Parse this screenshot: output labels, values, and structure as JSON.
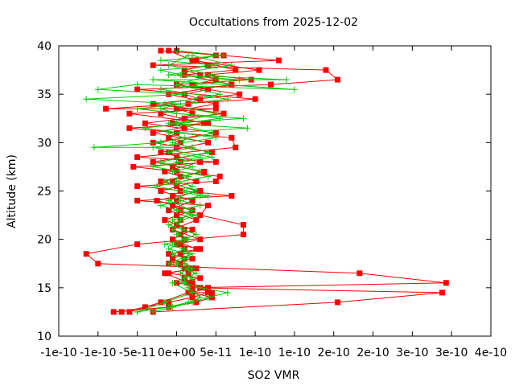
{
  "chart_data": {
    "type": "line",
    "title": "Occultations from 2025-12-02",
    "xlabel": "SO2 VMR",
    "ylabel": "Altitude (km)",
    "xlim": [
      -1.5e-10,
      4e-10
    ],
    "ylim": [
      10,
      40
    ],
    "x_tick_values": [
      -1.5e-10,
      -1e-10,
      -5e-11,
      0,
      5e-11,
      1e-10,
      1.5e-10,
      2e-10,
      2.5e-10,
      3e-10,
      3.5e-10,
      4e-10
    ],
    "x_tick_labels": [
      "-1e-10",
      "-1e-10",
      "-5e-11",
      "0e+00",
      "5e-11",
      "1e-10",
      "1e-10",
      "2e-10",
      "2e-10",
      "3e-10",
      "3e-10",
      "4e-10"
    ],
    "y_tick_values": [
      10,
      15,
      20,
      25,
      30,
      35,
      40
    ],
    "y_tick_labels": [
      "10",
      "15",
      "20",
      "25",
      "30",
      "35",
      "40"
    ],
    "grid": false,
    "legend": "none",
    "series": [
      {
        "marker": "square",
        "color": "#ff0000",
        "points": [
          [
            -7e-11,
            12.5
          ],
          [
            -4e-11,
            13
          ],
          [
            -1e-11,
            13.5
          ],
          [
            2e-11,
            14
          ],
          [
            4e-11,
            14.5
          ],
          [
            3e-11,
            15
          ],
          [
            2e-11,
            15.5
          ],
          [
            1e-11,
            16
          ],
          [
            1.5e-11,
            16.5
          ],
          [
            1e-11,
            17
          ],
          [
            5e-12,
            17.5
          ],
          [
            1e-11,
            18
          ],
          [
            5e-12,
            18.5
          ],
          [
            1e-11,
            19
          ],
          [
            5e-12,
            19.5
          ],
          [
            1e-11,
            20
          ],
          [
            5e-12,
            20.5
          ],
          [
            1e-11,
            21
          ],
          [
            0,
            21.5
          ],
          [
            5e-12,
            22
          ],
          [
            0,
            22.5
          ],
          [
            5e-12,
            23
          ],
          [
            -5e-12,
            23.5
          ],
          [
            0,
            24
          ],
          [
            -5e-12,
            24.5
          ],
          [
            5e-12,
            25
          ],
          [
            0,
            25.5
          ],
          [
            -5e-12,
            26
          ],
          [
            5e-12,
            26.5
          ],
          [
            0,
            27
          ],
          [
            -5e-12,
            27.5
          ],
          [
            5e-12,
            28
          ],
          [
            0,
            28.5
          ],
          [
            -1e-11,
            29
          ],
          [
            0,
            29.5
          ],
          [
            5e-12,
            30
          ],
          [
            -1e-11,
            30.5
          ],
          [
            0,
            31
          ],
          [
            1e-11,
            31.5
          ],
          [
            -5e-12,
            32
          ],
          [
            1e-11,
            32.5
          ],
          [
            2e-11,
            33
          ],
          [
            0,
            33.5
          ],
          [
            1.5e-11,
            34
          ],
          [
            3e-11,
            34.5
          ],
          [
            1e-11,
            35
          ],
          [
            4e-11,
            35.5
          ],
          [
            2e-11,
            36
          ],
          [
            5e-11,
            36.5
          ],
          [
            3e-11,
            37
          ],
          [
            1e-11,
            37.5
          ],
          [
            4e-11,
            38
          ],
          [
            2e-11,
            38.5
          ],
          [
            5e-11,
            39
          ],
          [
            0,
            39.5
          ]
        ]
      },
      {
        "marker": "square",
        "color": "#ff0000",
        "points": [
          [
            -3e-11,
            12.5
          ],
          [
            2.05e-10,
            13.5
          ],
          [
            3.38e-10,
            14.5
          ],
          [
            2e-11,
            15
          ],
          [
            3.43e-10,
            15.5
          ],
          [
            2.33e-10,
            16.5
          ],
          [
            -1e-10,
            17.5
          ],
          [
            -1.15e-10,
            18.5
          ],
          [
            -5e-11,
            19.5
          ],
          [
            8.5e-11,
            20.5
          ],
          [
            8.5e-11,
            21.5
          ],
          [
            3e-11,
            22.5
          ],
          [
            4e-11,
            23.5
          ],
          [
            -5e-11,
            24
          ],
          [
            7e-11,
            24.5
          ],
          [
            -5e-11,
            25.5
          ],
          [
            5e-11,
            26
          ],
          [
            5.5e-11,
            26.5
          ],
          [
            -5.5e-11,
            27.5
          ],
          [
            5e-11,
            28
          ],
          [
            -5e-11,
            28.5
          ],
          [
            7.5e-11,
            29.5
          ],
          [
            7e-11,
            30.5
          ],
          [
            -6e-11,
            31.5
          ],
          [
            4e-11,
            32
          ],
          [
            -6e-11,
            33
          ],
          [
            5e-11,
            33.5
          ],
          [
            -9e-11,
            33.5
          ],
          [
            1e-10,
            34.5
          ],
          [
            -5e-11,
            35.5
          ],
          [
            1.2e-10,
            36
          ],
          [
            2.05e-10,
            36.5
          ],
          [
            1.9e-10,
            37.5
          ],
          [
            -3e-11,
            38
          ],
          [
            1.3e-10,
            38.5
          ],
          [
            6e-11,
            39
          ],
          [
            -2e-11,
            39.5
          ]
        ]
      },
      {
        "marker": "square",
        "color": "#ff0000",
        "points": [
          [
            -8e-11,
            12.5
          ],
          [
            -1e-11,
            13
          ],
          [
            2.5e-11,
            13.5
          ],
          [
            4.5e-11,
            14
          ],
          [
            2e-11,
            14.5
          ],
          [
            4e-11,
            15
          ],
          [
            0,
            15.5
          ],
          [
            3e-11,
            16
          ],
          [
            -1e-11,
            16.5
          ],
          [
            2e-11,
            17
          ],
          [
            -1e-11,
            17.5
          ],
          [
            2e-11,
            18
          ],
          [
            -1e-11,
            18.5
          ],
          [
            3e-11,
            19
          ],
          [
            0,
            19.5
          ],
          [
            3e-11,
            20
          ],
          [
            -5e-12,
            21
          ],
          [
            2.5e-11,
            22
          ],
          [
            -1e-11,
            23
          ],
          [
            2e-11,
            24
          ],
          [
            -2e-11,
            25
          ],
          [
            2.5e-11,
            26
          ],
          [
            -1.5e-11,
            27
          ],
          [
            3e-11,
            28
          ],
          [
            -2e-11,
            29
          ],
          [
            4e-11,
            30
          ],
          [
            -3e-11,
            31
          ],
          [
            3.5e-11,
            32
          ],
          [
            -2e-11,
            33
          ],
          [
            5e-11,
            34
          ],
          [
            -1e-11,
            35
          ],
          [
            7e-11,
            36
          ],
          [
            1e-11,
            37
          ],
          [
            7.5e-11,
            37.5
          ],
          [
            2.5e-11,
            38.5
          ]
        ]
      },
      {
        "marker": "square",
        "color": "#ff0000",
        "points": [
          [
            -6e-11,
            12.5
          ],
          [
            -2e-11,
            13.5
          ],
          [
            1.5e-11,
            14.5
          ],
          [
            4.5e-11,
            14.5
          ],
          [
            1.5e-11,
            15.5
          ],
          [
            -1.5e-11,
            16.5
          ],
          [
            2.5e-11,
            17
          ],
          [
            -5e-12,
            18
          ],
          [
            2.5e-11,
            19
          ],
          [
            -5e-12,
            20
          ],
          [
            2e-11,
            21
          ],
          [
            -1.5e-11,
            22
          ],
          [
            2e-11,
            23
          ],
          [
            -2.5e-11,
            24
          ],
          [
            3e-11,
            25
          ],
          [
            -2e-11,
            26
          ],
          [
            3.5e-11,
            27
          ],
          [
            -3e-11,
            28
          ],
          [
            4.5e-11,
            29
          ],
          [
            -3e-11,
            30
          ],
          [
            5e-11,
            31
          ],
          [
            -4e-11,
            32
          ],
          [
            6e-11,
            33
          ],
          [
            -3e-11,
            34
          ],
          [
            8e-11,
            35
          ],
          [
            0,
            36
          ],
          [
            9.5e-11,
            36.5
          ],
          [
            4e-11,
            37
          ],
          [
            1.05e-10,
            37.5
          ],
          [
            2e-11,
            38.5
          ],
          [
            -1e-11,
            39.5
          ]
        ]
      },
      {
        "marker": "plus",
        "color": "#00cc00",
        "points": [
          [
            -3e-11,
            12.5
          ],
          [
            -5e-12,
            13
          ],
          [
            2e-11,
            13.5
          ],
          [
            4e-11,
            14
          ],
          [
            6.5e-11,
            14.5
          ],
          [
            3e-11,
            15
          ],
          [
            1e-11,
            15.5
          ],
          [
            2e-11,
            16
          ],
          [
            5e-12,
            16.5
          ],
          [
            1.5e-11,
            17
          ],
          [
            0,
            17.5
          ],
          [
            1e-11,
            18
          ],
          [
            -5e-12,
            18.5
          ],
          [
            1e-11,
            19
          ],
          [
            -1.5e-11,
            19.5
          ],
          [
            1e-11,
            20
          ],
          [
            0,
            20.5
          ],
          [
            1e-11,
            21
          ],
          [
            -5e-12,
            22
          ],
          [
            2e-11,
            22.5
          ],
          [
            0,
            23
          ],
          [
            3e-11,
            23.5
          ],
          [
            5e-12,
            24
          ],
          [
            4e-11,
            24.5
          ],
          [
            1e-11,
            25
          ],
          [
            2e-11,
            25.5
          ],
          [
            0,
            26
          ],
          [
            1.5e-11,
            26.5
          ],
          [
            -5e-12,
            27
          ],
          [
            2e-11,
            27.5
          ],
          [
            0,
            28
          ],
          [
            3e-11,
            28.5
          ],
          [
            -1e-11,
            29
          ],
          [
            2e-11,
            29.5
          ],
          [
            -1.05e-10,
            29.5
          ],
          [
            -2e-11,
            30
          ],
          [
            1e-11,
            30.5
          ],
          [
            -1e-11,
            31
          ],
          [
            9e-11,
            31.5
          ],
          [
            -1e-11,
            32
          ],
          [
            8.5e-11,
            32.5
          ],
          [
            0,
            33
          ],
          [
            -2e-11,
            33.5
          ],
          [
            5e-12,
            34
          ],
          [
            -1.15e-10,
            34.5
          ],
          [
            1e-11,
            35
          ],
          [
            -1e-10,
            35.5
          ],
          [
            -5e-11,
            36
          ],
          [
            1.5e-10,
            35.5
          ],
          [
            -3e-11,
            36.5
          ],
          [
            1.4e-10,
            36.5
          ],
          [
            5e-12,
            37
          ],
          [
            -2e-11,
            37.5
          ],
          [
            5e-11,
            38
          ],
          [
            -2e-11,
            38.5
          ],
          [
            6e-11,
            39
          ],
          [
            0,
            39.5
          ]
        ]
      },
      {
        "marker": "plus",
        "color": "#00cc00",
        "points": [
          [
            -5e-11,
            12.5
          ],
          [
            -1e-11,
            13
          ],
          [
            1.5e-11,
            13.5
          ],
          [
            3e-11,
            14
          ],
          [
            1.5e-11,
            15
          ],
          [
            1e-11,
            16
          ],
          [
            2e-11,
            17
          ],
          [
            1e-11,
            17.5
          ],
          [
            1.5e-11,
            18.5
          ],
          [
            -1e-11,
            19
          ],
          [
            1.5e-11,
            20
          ],
          [
            -5e-12,
            21
          ],
          [
            5e-12,
            22
          ],
          [
            2e-11,
            23
          ],
          [
            -1e-11,
            24
          ],
          [
            2.5e-11,
            25
          ],
          [
            -1.5e-11,
            26
          ],
          [
            3e-11,
            27
          ],
          [
            -2e-11,
            28
          ],
          [
            4e-11,
            29
          ],
          [
            -5e-12,
            30
          ],
          [
            4.5e-11,
            31
          ],
          [
            0,
            32
          ],
          [
            5e-11,
            33
          ],
          [
            -1.5e-11,
            34
          ],
          [
            5.5e-11,
            35
          ],
          [
            0,
            36
          ],
          [
            4.5e-11,
            37
          ],
          [
            -1e-11,
            38
          ],
          [
            1.5e-11,
            39
          ]
        ]
      },
      {
        "marker": "plus",
        "color": "#00cc00",
        "points": [
          [
            -5e-11,
            12.5
          ],
          [
            -1.5e-11,
            13.5
          ],
          [
            2e-11,
            14.5
          ],
          [
            -5e-12,
            15.5
          ],
          [
            2.5e-11,
            16.5
          ],
          [
            -1e-11,
            17.5
          ],
          [
            2e-11,
            18.5
          ],
          [
            -5e-12,
            19.5
          ],
          [
            2.5e-11,
            20.5
          ],
          [
            -1e-11,
            21.5
          ],
          [
            2.5e-11,
            22.5
          ],
          [
            -2e-11,
            23.5
          ],
          [
            3e-11,
            24.5
          ],
          [
            -2.5e-11,
            25.5
          ],
          [
            4e-11,
            26.5
          ],
          [
            -3e-11,
            27.5
          ],
          [
            4.5e-11,
            28.5
          ],
          [
            -3e-11,
            29.5
          ],
          [
            5e-11,
            30.5
          ],
          [
            -4e-11,
            31.5
          ],
          [
            5.5e-11,
            32.5
          ],
          [
            -5e-11,
            33.5
          ],
          [
            6.5e-11,
            34.5
          ],
          [
            -2e-11,
            35.5
          ],
          [
            8e-11,
            36.5
          ],
          [
            -1e-11,
            37
          ],
          [
            7e-11,
            38
          ],
          [
            2e-11,
            39
          ]
        ]
      }
    ]
  }
}
